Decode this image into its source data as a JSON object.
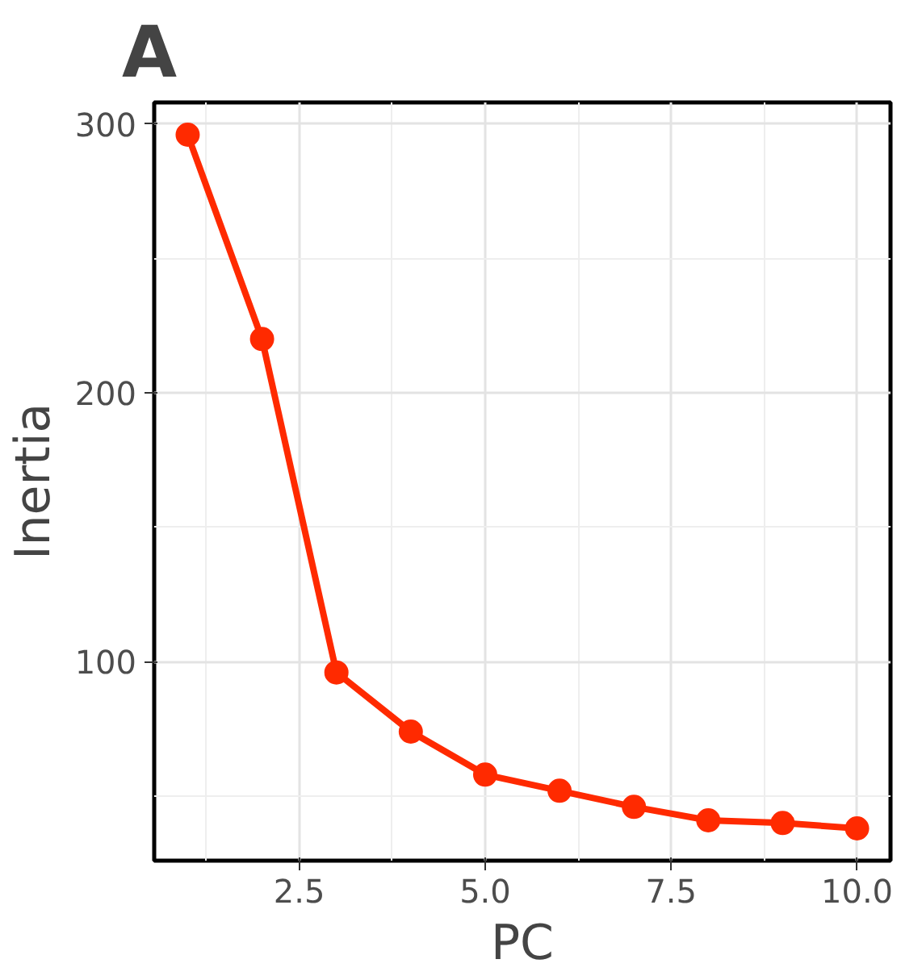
{
  "chart_data": {
    "type": "line",
    "title": "A",
    "xlabel": "PC",
    "ylabel": "Inertia",
    "x": [
      1,
      2,
      3,
      4,
      5,
      6,
      7,
      8,
      9,
      10
    ],
    "series": [
      {
        "color": "#ff2a00",
        "values": [
          296,
          220,
          96,
          74,
          58,
          52,
          46,
          41,
          40,
          38
        ]
      }
    ],
    "xlim": [
      0.55,
      10.45
    ],
    "ylim": [
      26,
      308
    ],
    "xticks": [
      2.5,
      {
        "value": 5,
        "label": "5.0"
      },
      7.5,
      {
        "value": 10,
        "label": "10.0"
      }
    ],
    "yticks": [
      100,
      200,
      300
    ],
    "grid": true,
    "marker": "circle",
    "line_style": "solid"
  }
}
